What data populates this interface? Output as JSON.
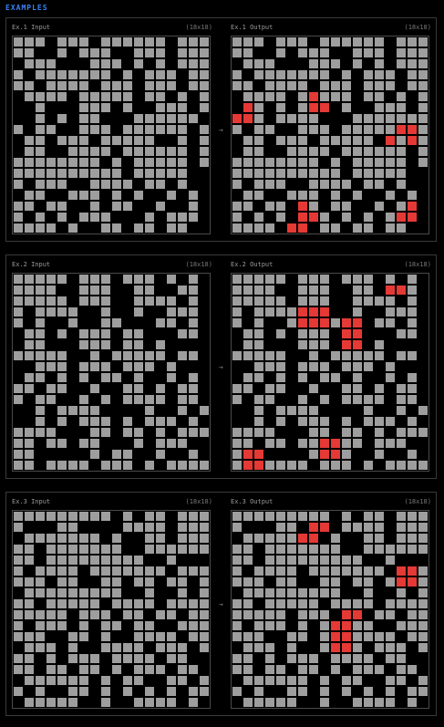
{
  "header": {
    "title": "EXAMPLES"
  },
  "colors": {
    "empty": "#9e9e9e",
    "wall": "#000000",
    "marked": "#e53935",
    "accent": "#3b82f6"
  },
  "arrow": "→",
  "examples": [
    {
      "input_label": "Ex.1 Input",
      "output_label": "Ex.1 Output",
      "input_dims": "(18x18)",
      "output_dims": "(18x18)",
      "input": [
        "000100010000001000",
        "001101000110001000",
        "100011100010101000",
        "010000000101000100",
        "001000010001000100",
        "100001000001001010",
        "110111000101100010",
        "110101001110000001",
        "010011000100000010",
        "100100010000011010",
        "100110000100000010",
        "000000001010000010",
        "000000000010000011",
        "010001100001001011",
        "100110001010110101",
        "001001101001101101",
        "010101000111010001",
        "000010110010010011"
      ],
      "output": [
        "000100010000001000",
        "001101000110001000",
        "100011100010101000",
        "010000000101000100",
        "001000010001000100",
        "100001020001001010",
        "120101022101100010",
        "220100001110000000",
        "010011000100000220",
        "100100010000012020",
        "100110000100000010",
        "000000001010000010",
        "000000000010000011",
        "010001100001001011",
        "100110001010110101",
        "001001201001101021",
        "010101220101010221",
        "000012210010010011"
      ]
    },
    {
      "input_label": "Ex.2 Input",
      "output_label": "Ex.2 Output",
      "input_dims": "(18x18)",
      "output_dims": "(18x18)",
      "input": [
        "000001000100010101",
        "000011000110011001",
        "000001000110000101",
        "010000110110110001",
        "010110110011100101",
        "100101000100111001",
        "100111000100101111",
        "000001101000001001",
        "110001000100010111",
        "100101010010110101",
        "001001101100101001",
        "010011010100001001",
        "110100001111011010",
        "110101000101000101",
        "000011100100101000",
        "001001001110100011",
        "001111101001101101",
        "001000010001010000"
      ],
      "output": [
        "000001000100010101",
        "000011000110012201",
        "000001000110000101",
        "010000222110110001",
        "010110222022100101",
        "100101000122111001",
        "100111000122101111",
        "000001101000001001",
        "110001000100010111",
        "100101010010110101",
        "001001101100101001",
        "010011010100001001",
        "110100001111011010",
        "110101000101000101",
        "000011100100101000",
        "001001002200100011",
        "022111102201101101",
        "022000010001010000"
      ]
    },
    {
      "input_label": "Ex.3 Input",
      "output_label": "Ex.3 Output",
      "input_dims": "(18x18)",
      "output_dims": "(18x18)",
      "input": [
        "000000000101001000",
        "011100111100001000",
        "100000001011001000",
        "001000000011000000",
        "001000000000110111",
        "010000100000001000",
        "000100110010010010",
        "100000000011011010",
        "001000001000010000",
        "000001000100100100",
        "010001010010011000",
        "000110010110000100",
        "100010110000100010",
        "001010001000010011",
        "001001001010001001",
        "100000010100110010",
        "010110010101010100",
        "100000110110000101"
      ],
      "output": [
        "000000000101001000",
        "011100122100001000",
        "100000221011001000",
        "001000000011000000",
        "001000000000110111",
        "010000100000001220",
        "000100110010010220",
        "100000000011011010",
        "001000001000010000",
        "000001000122100100",
        "010001010220011000",
        "000110010220000100",
        "100010110220100010",
        "001010001000010011",
        "001001001010001001",
        "100000010100110010",
        "010110010101010100",
        "100000110110000101"
      ]
    }
  ]
}
